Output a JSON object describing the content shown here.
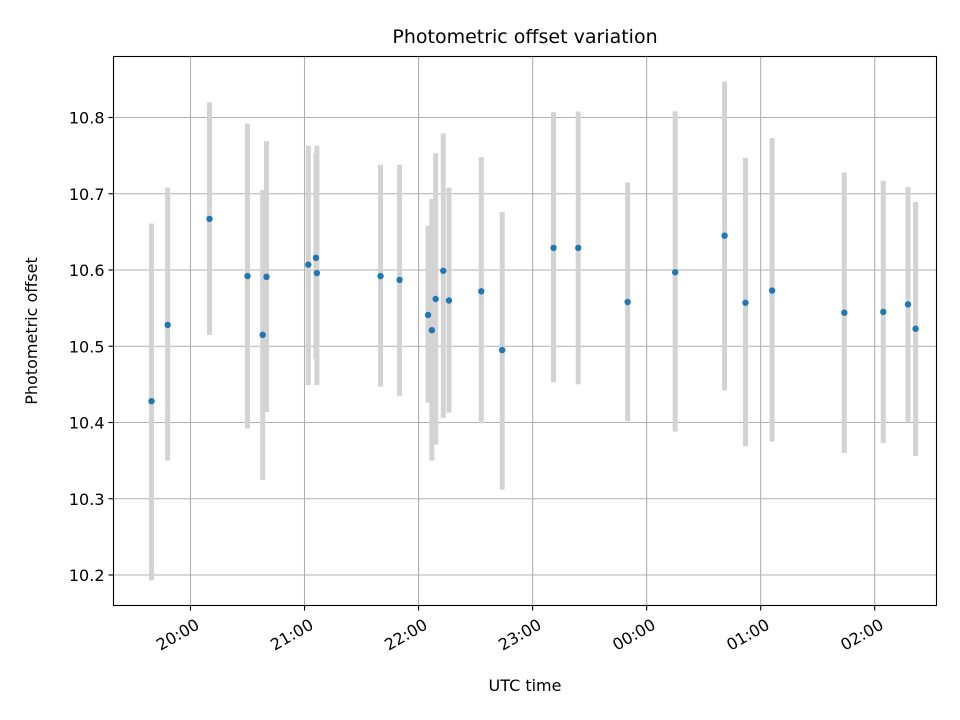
{
  "chart_data": {
    "type": "scatter",
    "title": "Photometric offset variation",
    "xlabel": "UTC time",
    "ylabel": "Photometric offset",
    "x_ticks": [
      "20:00",
      "21:00",
      "22:00",
      "23:00",
      "00:00",
      "01:00",
      "02:00"
    ],
    "x_tick_positions_min": [
      30,
      90,
      150,
      210,
      270,
      330,
      390
    ],
    "xlim_min": [
      -10.5,
      422.5
    ],
    "y_ticks": [
      "10.2",
      "10.3",
      "10.4",
      "10.5",
      "10.6",
      "10.7",
      "10.8"
    ],
    "ylim": [
      10.16,
      10.88
    ],
    "grid": true,
    "colors": {
      "point": "#1f77b4",
      "errorbar": "#d3d3d3",
      "grid": "#b0b0b0"
    },
    "x_unit": "minutes after 19:30 UTC",
    "series": [
      {
        "name": "Photometric offset",
        "x": [
          9.5,
          18,
          40,
          60,
          68,
          70,
          92,
          96,
          96.5,
          130,
          140,
          155,
          157,
          159,
          163,
          166,
          183,
          194,
          221,
          234,
          260,
          285,
          311,
          322,
          336,
          374,
          394.5,
          407.5,
          411.5
        ],
        "y": [
          10.428,
          10.528,
          10.667,
          10.592,
          10.515,
          10.591,
          10.607,
          10.616,
          10.596,
          10.592,
          10.587,
          10.541,
          10.521,
          10.562,
          10.599,
          10.56,
          10.572,
          10.495,
          10.629,
          10.629,
          10.558,
          10.597,
          10.645,
          10.557,
          10.573,
          10.544,
          10.545,
          10.555,
          10.523
        ],
        "yerr_low": [
          0.235,
          0.178,
          0.152,
          0.2,
          0.19,
          0.177,
          0.158,
          0.132,
          0.147,
          0.145,
          0.152,
          0.115,
          0.171,
          0.191,
          0.193,
          0.147,
          0.173,
          0.183,
          0.176,
          0.179,
          0.156,
          0.209,
          0.203,
          0.188,
          0.198,
          0.184,
          0.172,
          0.155,
          0.167
        ],
        "yerr_high": [
          0.233,
          0.18,
          0.153,
          0.2,
          0.19,
          0.178,
          0.156,
          0.137,
          0.167,
          0.146,
          0.151,
          0.117,
          0.172,
          0.191,
          0.18,
          0.148,
          0.176,
          0.181,
          0.178,
          0.179,
          0.157,
          0.211,
          0.202,
          0.19,
          0.2,
          0.184,
          0.172,
          0.154,
          0.166
        ]
      }
    ]
  }
}
